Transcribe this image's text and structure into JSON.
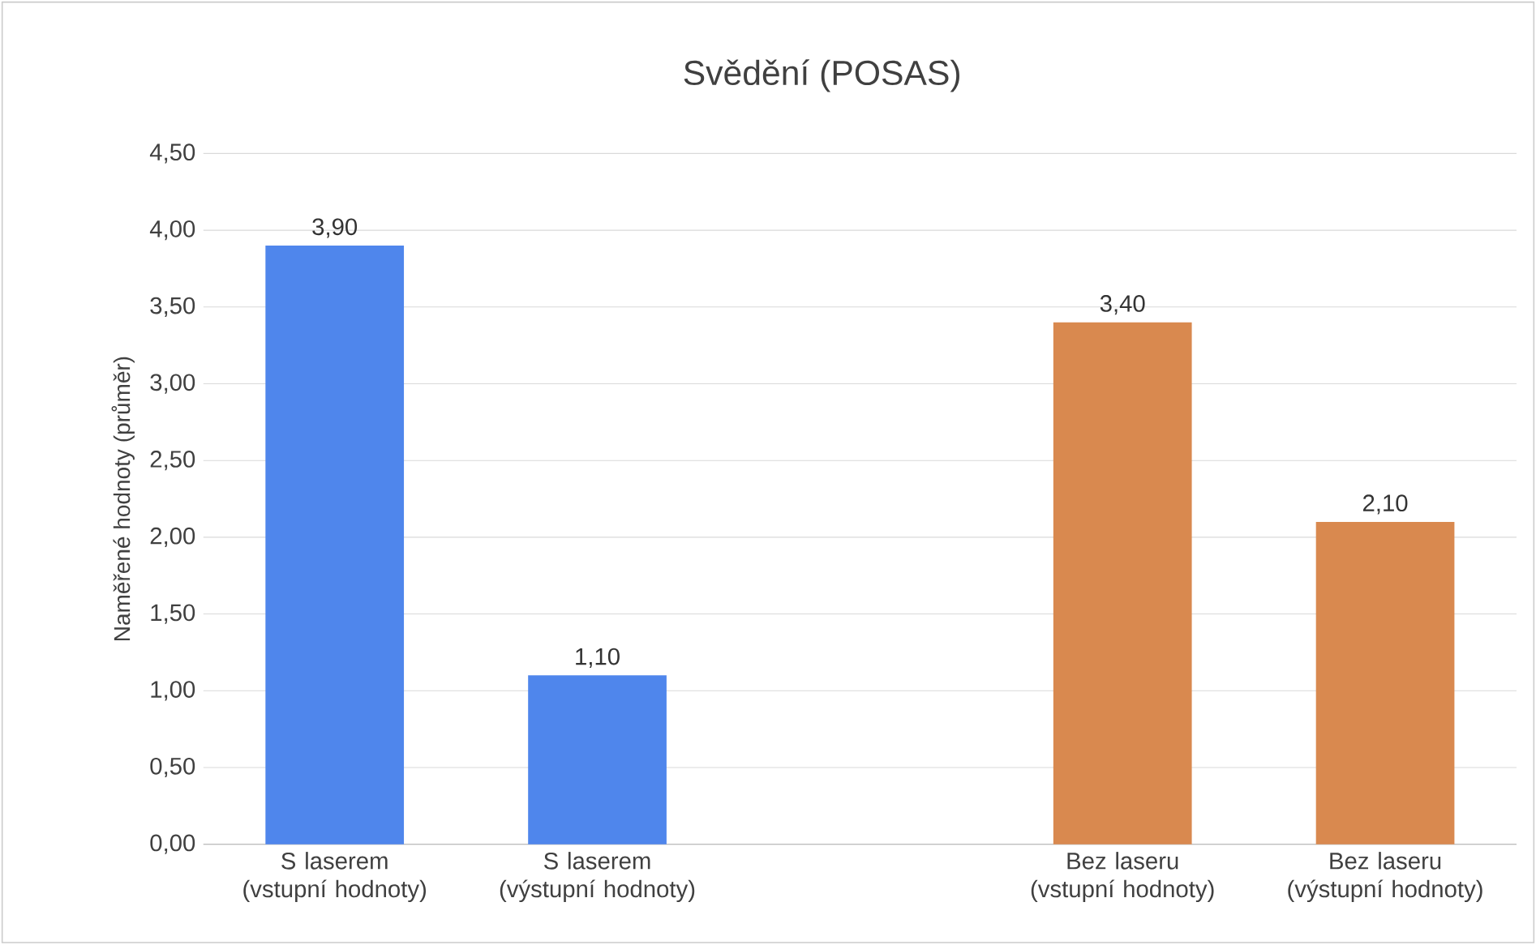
{
  "chart_data": {
    "type": "bar",
    "title": "Svědění (POSAS)",
    "ylabel": "Naměřené hodnoty (průměr)",
    "categories": [
      "S laserem (vstupní hodnoty)",
      "S laserem (výstupní hodnoty)",
      null,
      "Bez laseru (vstupní hodnoty)",
      "Bez laseru (výstupní hodnoty)"
    ],
    "values": [
      3.9,
      1.1,
      null,
      3.4,
      2.1
    ],
    "colors": [
      "#4f86ec",
      "#4f86ec",
      null,
      "#d9894f",
      "#d9894f"
    ],
    "value_labels": [
      "3,90",
      "1,10",
      null,
      "3,40",
      "2,10"
    ],
    "ylim": [
      0,
      4.5
    ],
    "yticks": [
      {
        "value": 0,
        "label": "0,00"
      },
      {
        "value": 0.5,
        "label": "0,50"
      },
      {
        "value": 1,
        "label": "1,00"
      },
      {
        "value": 1.5,
        "label": "1,50"
      },
      {
        "value": 2,
        "label": "2,00"
      },
      {
        "value": 2.5,
        "label": "2,50"
      },
      {
        "value": 3,
        "label": "3,00"
      },
      {
        "value": 3.5,
        "label": "3,50"
      },
      {
        "value": 4,
        "label": "4,00"
      },
      {
        "value": 4.5,
        "label": "4,50"
      }
    ],
    "grid": "y"
  }
}
